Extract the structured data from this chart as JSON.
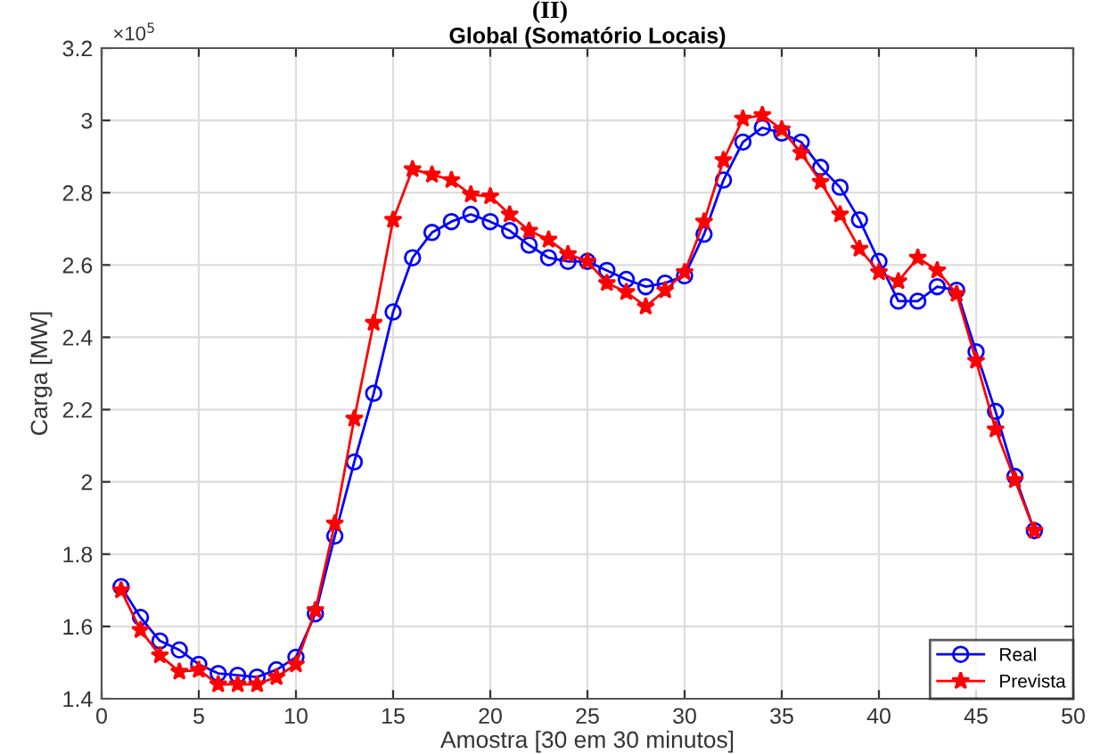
{
  "chart_data": {
    "type": "line",
    "title": "Global (Somatório Locais)",
    "xlabel": "Amostra [30 em 30 minutos]",
    "ylabel": "Carga [MW]",
    "annotations": [
      "(II)",
      "×10$^{5}$"
    ],
    "x": [
      1,
      2,
      3,
      4,
      5,
      6,
      7,
      8,
      9,
      10,
      11,
      12,
      13,
      14,
      15,
      16,
      17,
      18,
      19,
      20,
      21,
      22,
      23,
      24,
      25,
      26,
      27,
      28,
      29,
      30,
      31,
      32,
      33,
      34,
      35,
      36,
      37,
      38,
      39,
      40,
      41,
      42,
      43,
      44,
      45,
      46,
      47,
      48
    ],
    "series": [
      {
        "name": "Real",
        "color": "#0000ff",
        "marker": "circle",
        "values": [
          1.71,
          1.625,
          1.56,
          1.535,
          1.495,
          1.47,
          1.465,
          1.46,
          1.48,
          1.515,
          1.635,
          1.85,
          2.055,
          2.245,
          2.47,
          2.62,
          2.69,
          2.72,
          2.74,
          2.72,
          2.695,
          2.655,
          2.62,
          2.61,
          2.61,
          2.585,
          2.56,
          2.54,
          2.55,
          2.57,
          2.685,
          2.835,
          2.94,
          2.98,
          2.965,
          2.94,
          2.87,
          2.815,
          2.725,
          2.61,
          2.5,
          2.5,
          2.54,
          2.53,
          2.36,
          2.195,
          2.015,
          1.865
        ]
      },
      {
        "name": "Prevista",
        "color": "#ff0000",
        "marker": "star",
        "values": [
          1.7,
          1.59,
          1.52,
          1.475,
          1.48,
          1.44,
          1.44,
          1.44,
          1.46,
          1.495,
          1.645,
          1.885,
          2.175,
          2.44,
          2.725,
          2.865,
          2.85,
          2.835,
          2.795,
          2.79,
          2.74,
          2.695,
          2.67,
          2.63,
          2.61,
          2.55,
          2.525,
          2.485,
          2.53,
          2.58,
          2.72,
          2.89,
          3.005,
          3.015,
          2.975,
          2.91,
          2.83,
          2.74,
          2.645,
          2.58,
          2.555,
          2.62,
          2.585,
          2.52,
          2.335,
          2.145,
          2.005,
          1.865
        ]
      }
    ],
    "xlim": [
      0,
      50
    ],
    "xticks": [
      0,
      5,
      10,
      15,
      20,
      25,
      30,
      35,
      40,
      45,
      50
    ],
    "ylim": [
      1.4,
      3.2
    ],
    "yticks": [
      1.4,
      1.6,
      1.8,
      2,
      2.2,
      2.4,
      2.6,
      2.8,
      3,
      3.2
    ],
    "grid": true,
    "legend": "bottom right",
    "line_style": "solid"
  }
}
